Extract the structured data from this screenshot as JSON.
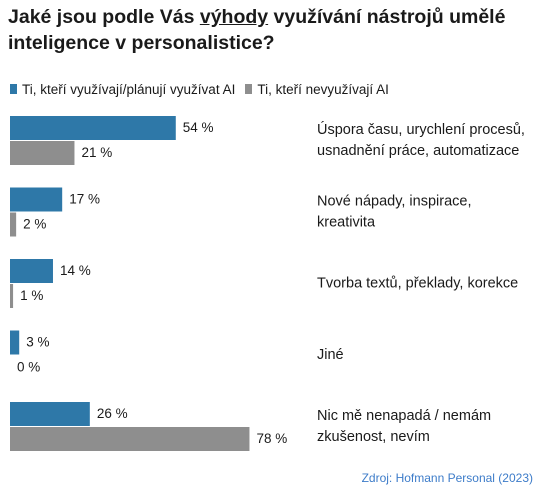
{
  "title": {
    "before": "Jaké jsou podle Vás ",
    "emphasis": "výhody",
    "after": " využívání nástrojů umělé inteligence v personalistice?"
  },
  "source": "Zdroj: Hofmann Personal (2023)",
  "colors": {
    "series1": "#2e78a8",
    "series2": "#8e8e8e"
  },
  "chart_data": {
    "type": "bar",
    "orientation": "horizontal",
    "title": "Jaké jsou podle Vás výhody využívání nástrojů umělé inteligence v personalistice?",
    "legend_position": "top-left",
    "grid": false,
    "categories": [
      [
        "Úspora času, urychlení procesů,",
        "usnadnění práce, automatizace"
      ],
      [
        "Nové nápady, inspirace,",
        "kreativita"
      ],
      [
        "Tvorba textů, překlady, korekce"
      ],
      [
        "Jiné"
      ],
      [
        "Nic mě nenapadá / nemám",
        "zkušenost, nevím"
      ]
    ],
    "series": [
      {
        "name": "Ti, kteří využívají/plánují využívat AI",
        "values": [
          54,
          17,
          14,
          3,
          26
        ]
      },
      {
        "name": "Ti, kteří nevyužívají AI",
        "values": [
          21,
          2,
          1,
          0,
          78
        ]
      }
    ],
    "value_suffix": " %",
    "xlim": [
      0,
      78
    ]
  }
}
